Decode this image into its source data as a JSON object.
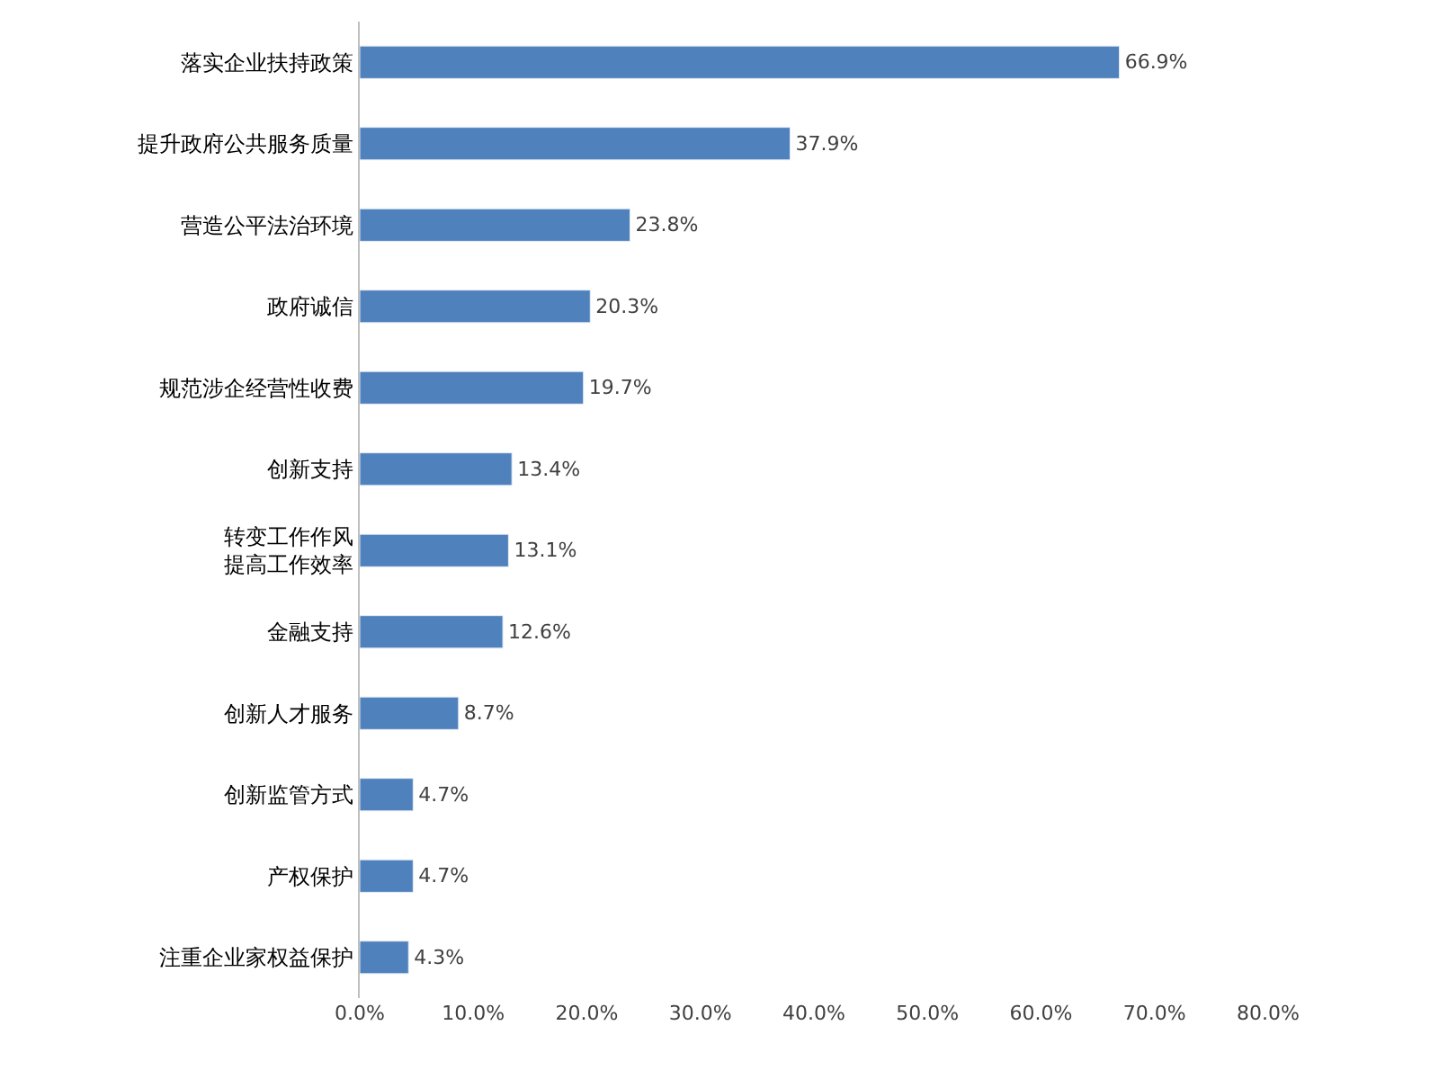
{
  "chart_data": {
    "type": "bar",
    "orientation": "horizontal",
    "categories": [
      "落实企业扶持政策",
      "提升政府公共服务质量",
      "营造公平法治环境",
      "政府诚信",
      "规范涉企经营性收费",
      "创新支持",
      "转变工作作风提高工作效率",
      "金融支持",
      "创新人才服务",
      "创新监管方式",
      "产权保护",
      "注重企业家权益保护"
    ],
    "values": [
      66.9,
      37.9,
      23.8,
      20.3,
      19.7,
      13.4,
      13.1,
      12.6,
      8.7,
      4.7,
      4.7,
      4.3
    ],
    "value_labels": [
      "66.9%",
      "37.9%",
      "23.8%",
      "20.3%",
      "19.7%",
      "13.4%",
      "13.1%",
      "12.6%",
      "8.7%",
      "4.7%",
      "4.7%",
      "4.3%"
    ],
    "color": "#4f81bd",
    "xlim": [
      0,
      80
    ],
    "xticks": [
      {
        "value": 0,
        "label": "0.0%"
      },
      {
        "value": 10,
        "label": "10.0%"
      },
      {
        "value": 20,
        "label": "20.0%"
      },
      {
        "value": 30,
        "label": "30.0%"
      },
      {
        "value": 40,
        "label": "40.0%"
      },
      {
        "value": 50,
        "label": "50.0%"
      },
      {
        "value": 60,
        "label": "60.0%"
      },
      {
        "value": 70,
        "label": "70.0%"
      },
      {
        "value": 80,
        "label": "80.0%"
      }
    ],
    "legend": false
  }
}
